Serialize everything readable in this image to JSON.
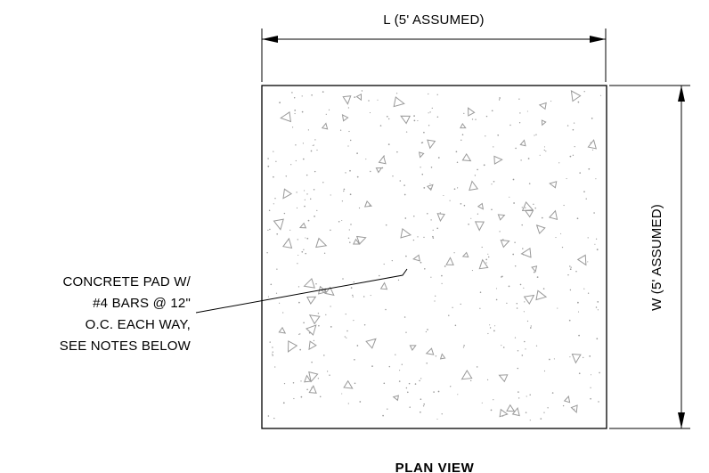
{
  "drawing": {
    "dimension_top_label": "L (5' ASSUMED)",
    "dimension_right_label": "W (5' ASSUMED)",
    "callout": {
      "line1": "CONCRETE PAD W/",
      "line2": "#4 BARS @ 12\"",
      "line3": "O.C. EACH WAY,",
      "line4": "SEE NOTES BELOW"
    },
    "view_title": "PLAN VIEW",
    "colors": {
      "line": "#000000",
      "hatch": "#9a9a9a",
      "background": "#ffffff"
    },
    "hatch_pattern": "concrete"
  }
}
